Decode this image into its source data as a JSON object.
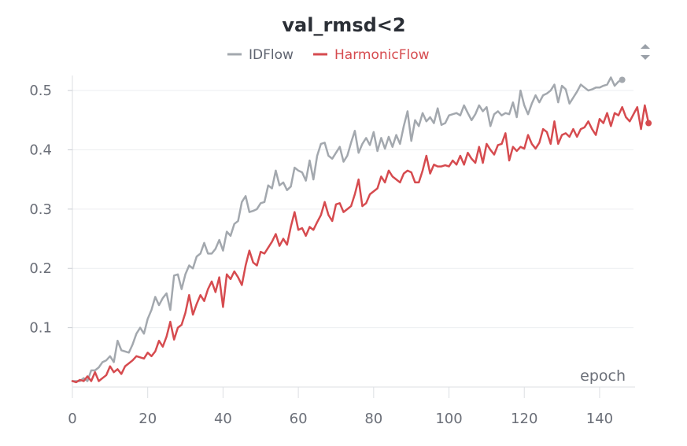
{
  "chart_data": {
    "type": "line",
    "title": "val_rmsd<2",
    "xlabel": "epoch",
    "ylabel": "",
    "xlim": [
      0,
      149
    ],
    "ylim": [
      0,
      0.52
    ],
    "x_ticks": [
      0,
      20,
      40,
      60,
      80,
      100,
      120,
      140
    ],
    "y_ticks": [
      0.1,
      0.2,
      0.3,
      0.4,
      0.5
    ],
    "x_tick_labels": [
      "0",
      "20",
      "40",
      "60",
      "80",
      "100",
      "120",
      "140"
    ],
    "y_tick_labels": [
      "0.1",
      "0.2",
      "0.3",
      "0.4",
      "0.5"
    ],
    "grid": true,
    "legend_position": "top-center",
    "series": [
      {
        "name": "IDFlow",
        "color": "#a3a8ae",
        "values": [
          0.01,
          0.01,
          0.01,
          0.015,
          0.01,
          0.028,
          0.028,
          0.033,
          0.042,
          0.045,
          0.052,
          0.042,
          0.078,
          0.062,
          0.06,
          0.058,
          0.072,
          0.09,
          0.1,
          0.09,
          0.115,
          0.13,
          0.152,
          0.138,
          0.15,
          0.158,
          0.13,
          0.188,
          0.19,
          0.165,
          0.19,
          0.205,
          0.2,
          0.22,
          0.225,
          0.243,
          0.225,
          0.225,
          0.233,
          0.248,
          0.23,
          0.262,
          0.255,
          0.275,
          0.28,
          0.312,
          0.322,
          0.295,
          0.297,
          0.3,
          0.31,
          0.312,
          0.34,
          0.335,
          0.365,
          0.34,
          0.345,
          0.332,
          0.338,
          0.37,
          0.365,
          0.362,
          0.348,
          0.382,
          0.35,
          0.39,
          0.41,
          0.412,
          0.39,
          0.385,
          0.395,
          0.405,
          0.38,
          0.39,
          0.412,
          0.432,
          0.395,
          0.41,
          0.42,
          0.408,
          0.43,
          0.398,
          0.42,
          0.402,
          0.422,
          0.405,
          0.425,
          0.41,
          0.44,
          0.465,
          0.415,
          0.45,
          0.44,
          0.462,
          0.448,
          0.455,
          0.445,
          0.47,
          0.442,
          0.445,
          0.458,
          0.46,
          0.462,
          0.458,
          0.475,
          0.462,
          0.45,
          0.46,
          0.475,
          0.465,
          0.472,
          0.44,
          0.46,
          0.465,
          0.458,
          0.462,
          0.46,
          0.48,
          0.455,
          0.5,
          0.475,
          0.46,
          0.478,
          0.492,
          0.48,
          0.492,
          0.495,
          0.5,
          0.51,
          0.48,
          0.508,
          0.502,
          0.478,
          0.488,
          0.498,
          0.51,
          0.505,
          0.5,
          0.502,
          0.505,
          0.505,
          0.508,
          0.51,
          0.522,
          0.508,
          0.515,
          0.518
        ]
      },
      {
        "name": "HarmonicFlow",
        "color": "#d64b4f",
        "values": [
          0.01,
          0.008,
          0.012,
          0.01,
          0.018,
          0.01,
          0.025,
          0.01,
          0.015,
          0.02,
          0.035,
          0.025,
          0.03,
          0.022,
          0.035,
          0.04,
          0.045,
          0.052,
          0.05,
          0.048,
          0.058,
          0.052,
          0.06,
          0.078,
          0.068,
          0.085,
          0.11,
          0.08,
          0.1,
          0.105,
          0.125,
          0.155,
          0.122,
          0.14,
          0.155,
          0.145,
          0.165,
          0.178,
          0.16,
          0.185,
          0.135,
          0.19,
          0.182,
          0.195,
          0.185,
          0.172,
          0.205,
          0.23,
          0.21,
          0.205,
          0.228,
          0.225,
          0.235,
          0.245,
          0.258,
          0.238,
          0.25,
          0.24,
          0.27,
          0.295,
          0.265,
          0.268,
          0.255,
          0.27,
          0.265,
          0.278,
          0.29,
          0.312,
          0.29,
          0.28,
          0.308,
          0.31,
          0.295,
          0.3,
          0.305,
          0.325,
          0.35,
          0.305,
          0.31,
          0.325,
          0.33,
          0.335,
          0.355,
          0.345,
          0.365,
          0.355,
          0.35,
          0.345,
          0.36,
          0.365,
          0.362,
          0.345,
          0.345,
          0.365,
          0.39,
          0.36,
          0.375,
          0.372,
          0.372,
          0.374,
          0.372,
          0.382,
          0.375,
          0.39,
          0.375,
          0.395,
          0.385,
          0.378,
          0.405,
          0.378,
          0.41,
          0.4,
          0.392,
          0.408,
          0.41,
          0.428,
          0.382,
          0.405,
          0.398,
          0.405,
          0.402,
          0.425,
          0.41,
          0.402,
          0.412,
          0.435,
          0.43,
          0.41,
          0.448,
          0.41,
          0.425,
          0.428,
          0.422,
          0.435,
          0.422,
          0.435,
          0.438,
          0.448,
          0.435,
          0.425,
          0.452,
          0.445,
          0.462,
          0.44,
          0.462,
          0.458,
          0.472,
          0.455,
          0.448,
          0.46,
          0.472,
          0.435,
          0.475,
          0.445
        ]
      }
    ]
  }
}
